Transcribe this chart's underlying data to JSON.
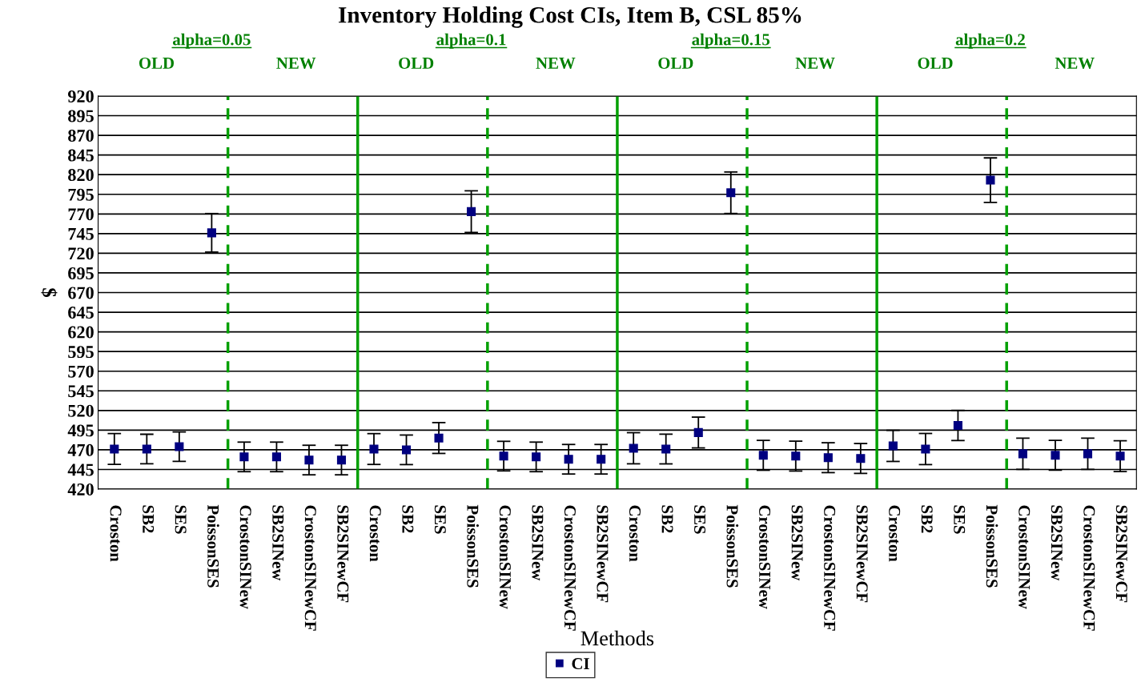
{
  "chart_data": {
    "type": "scatter",
    "title": "Inventory Holding Cost CIs, Item B, CSL 85%",
    "categories": [
      "Croston",
      "SB2",
      "SES",
      "PoissonSES",
      "CrostonSINew",
      "SB2SINew",
      "CrostonSINewCF",
      "SB2SINewCF",
      "Croston",
      "SB2",
      "SES",
      "PoissonSES",
      "CrostonSINew",
      "SB2SINew",
      "CrostonSINewCF",
      "SB2SINewCF",
      "Croston",
      "SB2",
      "SES",
      "PoissonSES",
      "CrostonSINew",
      "SB2SINew",
      "CrostonSINewCF",
      "SB2SINewCF",
      "Croston",
      "SB2",
      "SES",
      "PoissonSES",
      "CrostonSINew",
      "SB2SINew",
      "CrostonSINewCF",
      "SB2SINewCF"
    ],
    "series": [
      {
        "name": "CI",
        "color": "#000080",
        "values": [
          471,
          471,
          474,
          746,
          461,
          461,
          457,
          457,
          471,
          470,
          485,
          773,
          462,
          461,
          458,
          458,
          472,
          471,
          492,
          797,
          463,
          462,
          460,
          459,
          475,
          471,
          501,
          813,
          465,
          463,
          465,
          462
        ],
        "errors": [
          19.6,
          18.8,
          18.8,
          24.5,
          18.8,
          18.8,
          18.8,
          18.8,
          19.6,
          18.8,
          19.6,
          26.5,
          18.8,
          18.8,
          18.8,
          18.8,
          19.8,
          18.9,
          19.6,
          26.4,
          19,
          19,
          19,
          19,
          19.8,
          19.8,
          19.2,
          28.3,
          19.8,
          19,
          19.8,
          19.6
        ]
      }
    ],
    "xlabel": "Methods",
    "ylabel": "$",
    "ylim": [
      420,
      920
    ],
    "yticks": [
      420,
      445,
      470,
      495,
      520,
      545,
      570,
      595,
      620,
      645,
      670,
      695,
      720,
      745,
      770,
      795,
      820,
      845,
      870,
      895,
      920
    ],
    "grid": "y",
    "marker": "square",
    "legend": "bottom",
    "annotations": [
      "alpha=0.05",
      "OLD",
      "NEW",
      "alpha=0.1",
      "OLD",
      "NEW",
      "alpha=0.15",
      "OLD",
      "NEW",
      "alpha=0.2",
      "OLD",
      "NEW"
    ]
  }
}
